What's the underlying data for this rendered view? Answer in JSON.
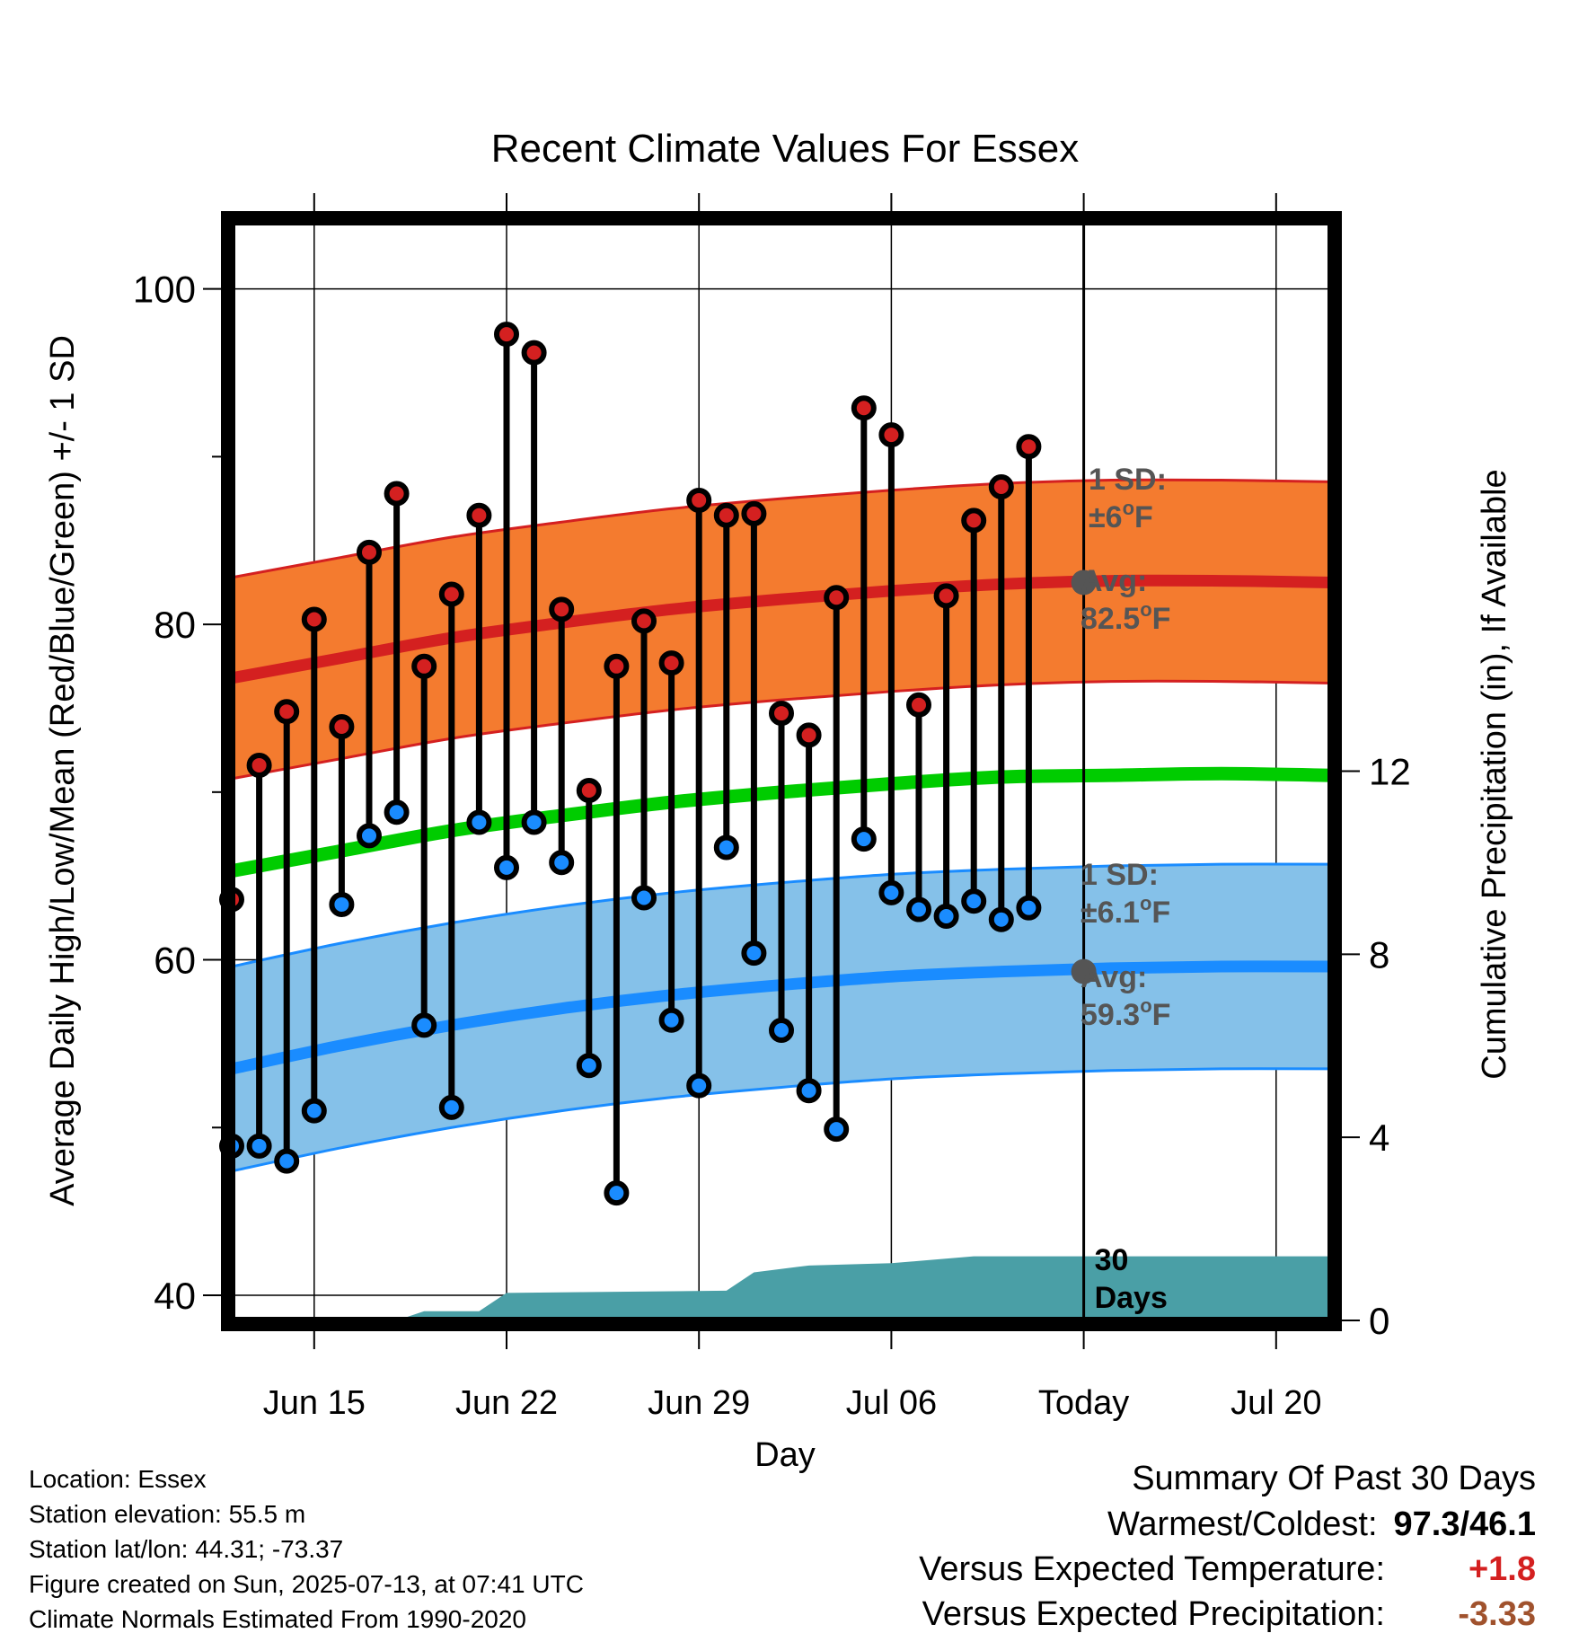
{
  "colors": {
    "high": "#d42020",
    "low": "#1a8cff",
    "mean": "#00cc00",
    "high_band": "#f47b2f",
    "low_band": "#85c1e9",
    "precip": "#4a9fa6",
    "stat_text": "#555555",
    "positive": "#d42020",
    "negative": "#a0522d"
  },
  "chart_data": {
    "type": "line",
    "title": "Recent Climate Values For Essex",
    "xlabel": "Day",
    "ylabel": "Average Daily High/Low/Mean (Red/Blue/Green) +/- 1 SD",
    "y2label": "Cumulative Precipitation (in), If Available",
    "x_start": "2025-06-12",
    "x_end": "2025-07-22",
    "ylim": [
      38.5,
      104
    ],
    "y2lim": [
      0,
      24
    ],
    "yticks": [
      100,
      80,
      60,
      40
    ],
    "y2ticks": [
      0,
      4,
      8,
      12
    ],
    "xticks": [
      {
        "date": "2025-06-15",
        "label": "Jun 15"
      },
      {
        "date": "2025-06-22",
        "label": "Jun 22"
      },
      {
        "date": "2025-06-29",
        "label": "Jun 29"
      },
      {
        "date": "2025-07-06",
        "label": "Jul 06"
      },
      {
        "date": "2025-07-13",
        "label": "Today"
      },
      {
        "date": "2025-07-20",
        "label": "Jul 20"
      }
    ],
    "grid": true,
    "today": "2025-07-13",
    "period_label": [
      "30",
      "Days"
    ],
    "daily": [
      {
        "date": "2025-06-12",
        "high": 63.6,
        "low": 48.9
      },
      {
        "date": "2025-06-13",
        "high": 71.6,
        "low": 48.9
      },
      {
        "date": "2025-06-14",
        "high": 74.8,
        "low": 48.0
      },
      {
        "date": "2025-06-15",
        "high": 80.3,
        "low": 51.0
      },
      {
        "date": "2025-06-16",
        "high": 73.9,
        "low": 63.3
      },
      {
        "date": "2025-06-17",
        "high": 84.3,
        "low": 67.4
      },
      {
        "date": "2025-06-18",
        "high": 87.8,
        "low": 68.8
      },
      {
        "date": "2025-06-19",
        "high": 77.5,
        "low": 56.1
      },
      {
        "date": "2025-06-20",
        "high": 81.8,
        "low": 51.2
      },
      {
        "date": "2025-06-21",
        "high": 86.5,
        "low": 68.2
      },
      {
        "date": "2025-06-22",
        "high": 97.3,
        "low": 65.5
      },
      {
        "date": "2025-06-23",
        "high": 96.2,
        "low": 68.2
      },
      {
        "date": "2025-06-24",
        "high": 80.9,
        "low": 65.8
      },
      {
        "date": "2025-06-25",
        "high": 70.1,
        "low": 53.7
      },
      {
        "date": "2025-06-26",
        "high": 77.5,
        "low": 46.1
      },
      {
        "date": "2025-06-27",
        "high": 80.2,
        "low": 63.7
      },
      {
        "date": "2025-06-28",
        "high": 77.7,
        "low": 56.4
      },
      {
        "date": "2025-06-29",
        "high": 87.4,
        "low": 52.5
      },
      {
        "date": "2025-06-30",
        "high": 86.5,
        "low": 66.7
      },
      {
        "date": "2025-07-01",
        "high": 86.6,
        "low": 60.4
      },
      {
        "date": "2025-07-02",
        "high": 74.7,
        "low": 55.8
      },
      {
        "date": "2025-07-03",
        "high": 73.4,
        "low": 52.2
      },
      {
        "date": "2025-07-04",
        "high": 81.6,
        "low": 49.9
      },
      {
        "date": "2025-07-05",
        "high": 92.9,
        "low": 67.2
      },
      {
        "date": "2025-07-06",
        "high": 91.3,
        "low": 64.0
      },
      {
        "date": "2025-07-07",
        "high": 75.2,
        "low": 63.0
      },
      {
        "date": "2025-07-08",
        "high": 81.7,
        "low": 62.6
      },
      {
        "date": "2025-07-09",
        "high": 86.2,
        "low": 63.5
      },
      {
        "date": "2025-07-10",
        "high": 88.2,
        "low": 62.4
      },
      {
        "date": "2025-07-11",
        "high": 90.6,
        "low": 63.1
      }
    ],
    "normals": {
      "dates": [
        "2025-06-12",
        "2025-06-16",
        "2025-06-20",
        "2025-06-24",
        "2025-06-28",
        "2025-07-02",
        "2025-07-06",
        "2025-07-10",
        "2025-07-14",
        "2025-07-18",
        "2025-07-22"
      ],
      "high_avg": [
        76.8,
        78.0,
        79.2,
        80.1,
        80.9,
        81.5,
        82.0,
        82.4,
        82.6,
        82.6,
        82.5
      ],
      "high_sd": 6,
      "low_avg": [
        53.5,
        54.9,
        56.1,
        57.1,
        57.9,
        58.5,
        59.0,
        59.3,
        59.5,
        59.6,
        59.6
      ],
      "low_sd": 6.1,
      "mean_avg": [
        65.3,
        66.5,
        67.7,
        68.6,
        69.4,
        70.0,
        70.5,
        70.9,
        71.0,
        71.1,
        71.0
      ]
    },
    "precip_cum": [
      {
        "date": "2025-06-12",
        "value": 0.0
      },
      {
        "date": "2025-06-18",
        "value": 0.0
      },
      {
        "date": "2025-06-19",
        "value": 0.2
      },
      {
        "date": "2025-06-21",
        "value": 0.2
      },
      {
        "date": "2025-06-22",
        "value": 0.6
      },
      {
        "date": "2025-06-30",
        "value": 0.65
      },
      {
        "date": "2025-07-01",
        "value": 1.05
      },
      {
        "date": "2025-07-03",
        "value": 1.2
      },
      {
        "date": "2025-07-06",
        "value": 1.25
      },
      {
        "date": "2025-07-07",
        "value": 1.3
      },
      {
        "date": "2025-07-09",
        "value": 1.4
      },
      {
        "date": "2025-07-22",
        "value": 1.4
      }
    ],
    "annotations": {
      "high_sd": {
        "line1": "1 SD:",
        "line2": "±6",
        "unit": "F"
      },
      "high_avg": {
        "line1": "Avg:",
        "line2": "82.5",
        "unit": "F",
        "value": 82.5
      },
      "low_sd": {
        "line1": "1 SD:",
        "line2": "±6.1",
        "unit": "F"
      },
      "low_avg": {
        "line1": "Avg:",
        "line2": "59.3",
        "unit": "F",
        "value": 59.3
      }
    }
  },
  "info": {
    "location": "Location: Essex",
    "elevation": "Station elevation: 55.5 m",
    "latlon": "Station lat/lon: 44.31; -73.37",
    "created": "Figure created on Sun, 2025-07-13, at 07:41 UTC",
    "normals": "Climate Normals Estimated From 1990-2020"
  },
  "summary": {
    "title": "Summary Of Past 30 Days",
    "warmest_label": "Warmest/Coldest:",
    "warmest_value": "97.3/46.1",
    "temp_label": "Versus Expected Temperature:",
    "temp_value": "+1.8",
    "precip_label": "Versus Expected Precipitation:",
    "precip_value": "-3.33"
  }
}
